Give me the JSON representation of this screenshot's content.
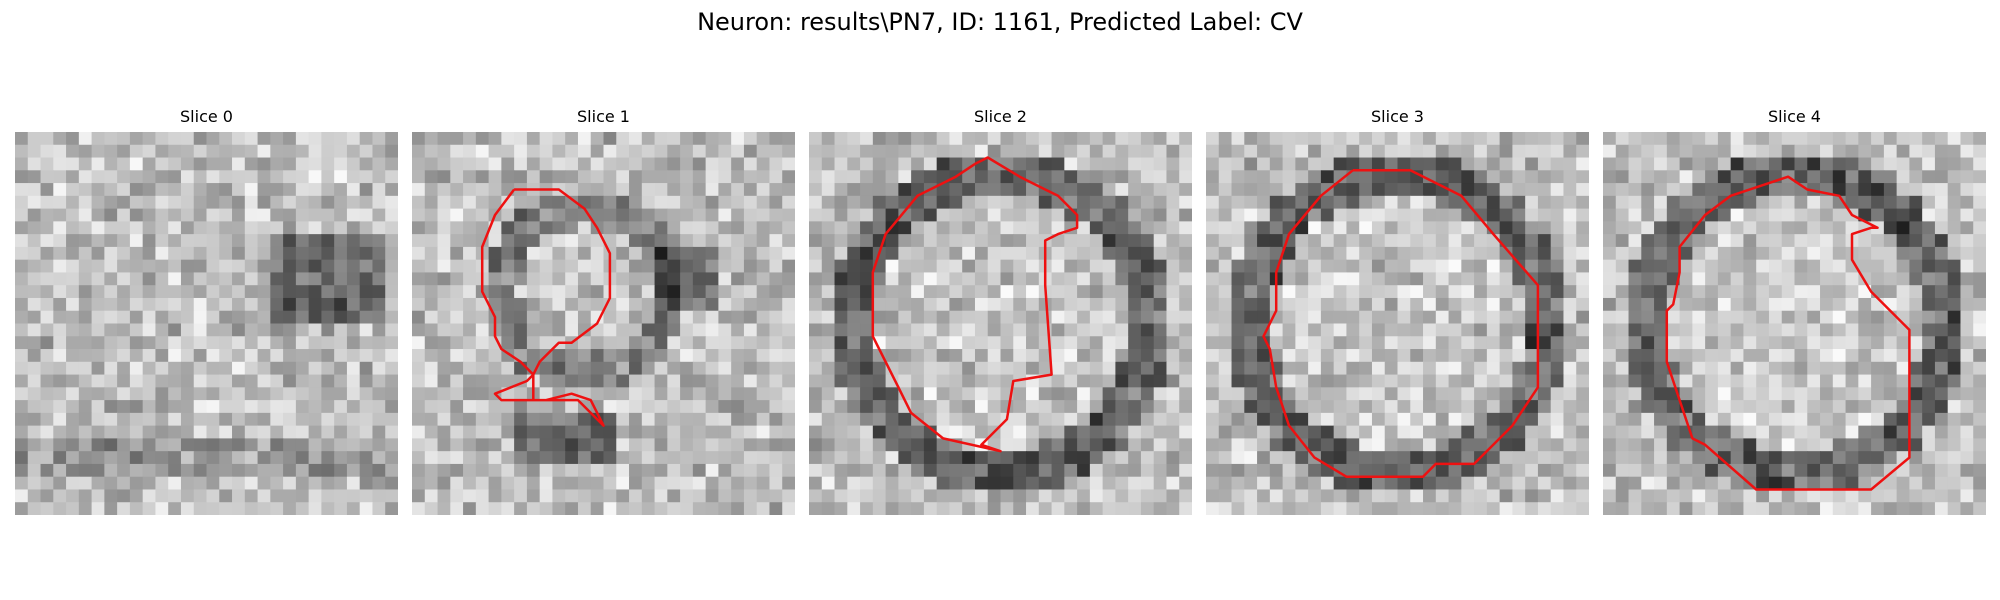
{
  "figure": {
    "title": "Neuron: results\\PN7, ID: 1161, Predicted Label: CV"
  },
  "contour_color": "#ee1111",
  "slices": [
    {
      "title": "Slice 0",
      "style": "blob",
      "seed": 11,
      "has_contour": false
    },
    {
      "title": "Slice 1",
      "style": "vesicle-small",
      "seed": 23,
      "has_contour": true
    },
    {
      "title": "Slice 2",
      "style": "ring",
      "seed": 37,
      "has_contour": true
    },
    {
      "title": "Slice 3",
      "style": "ring",
      "seed": 51,
      "has_contour": true
    },
    {
      "title": "Slice 4",
      "style": "ring",
      "seed": 67,
      "has_contour": true
    }
  ]
}
